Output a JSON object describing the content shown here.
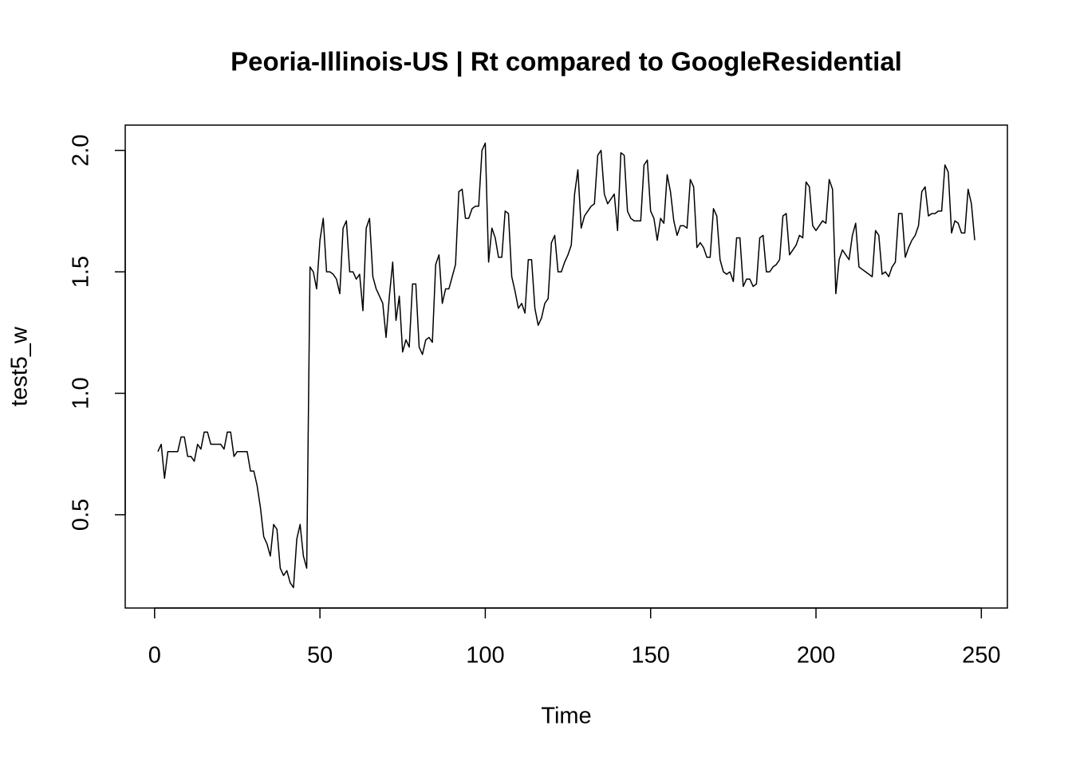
{
  "chart_data": {
    "type": "line",
    "title": "Peoria-Illinois-US | Rt compared to GoogleResidential",
    "xlabel": "Time",
    "ylabel": "test5_w",
    "color": "#000000",
    "x": [
      1,
      2,
      3,
      4,
      5,
      6,
      7,
      8,
      9,
      10,
      11,
      12,
      13,
      14,
      15,
      16,
      17,
      18,
      19,
      20,
      21,
      22,
      23,
      24,
      25,
      26,
      27,
      28,
      29,
      30,
      31,
      32,
      33,
      34,
      35,
      36,
      37,
      38,
      39,
      40,
      41,
      42,
      43,
      44,
      45,
      46,
      47,
      48,
      49,
      50,
      51,
      52,
      53,
      54,
      55,
      56,
      57,
      58,
      59,
      60,
      61,
      62,
      63,
      64,
      65,
      66,
      67,
      68,
      69,
      70,
      71,
      72,
      73,
      74,
      75,
      76,
      77,
      78,
      79,
      80,
      81,
      82,
      83,
      84,
      85,
      86,
      87,
      88,
      89,
      90,
      91,
      92,
      93,
      94,
      95,
      96,
      97,
      98,
      99,
      100,
      101,
      102,
      103,
      104,
      105,
      106,
      107,
      108,
      109,
      110,
      111,
      112,
      113,
      114,
      115,
      116,
      117,
      118,
      119,
      120,
      121,
      122,
      123,
      124,
      125,
      126,
      127,
      128,
      129,
      130,
      131,
      132,
      133,
      134,
      135,
      136,
      137,
      138,
      139,
      140,
      141,
      142,
      143,
      144,
      145,
      146,
      147,
      148,
      149,
      150,
      151,
      152,
      153,
      154,
      155,
      156,
      157,
      158,
      159,
      160,
      161,
      162,
      163,
      164,
      165,
      166,
      167,
      168,
      169,
      170,
      171,
      172,
      173,
      174,
      175,
      176,
      177,
      178,
      179,
      180,
      181,
      182,
      183,
      184,
      185,
      186,
      187,
      188,
      189,
      190,
      191,
      192,
      193,
      194,
      195,
      196,
      197,
      198,
      199,
      200,
      201,
      202,
      203,
      204,
      205,
      206,
      207,
      208,
      209,
      210,
      211,
      212,
      213,
      214,
      215,
      216,
      217,
      218,
      219,
      220,
      221,
      222,
      223,
      224,
      225,
      226,
      227,
      228,
      229,
      230,
      231,
      232,
      233,
      234,
      235,
      236,
      237,
      238,
      239,
      240,
      241,
      242,
      243,
      244,
      245,
      246,
      247,
      248
    ],
    "values": [
      0.76,
      0.79,
      0.65,
      0.76,
      0.76,
      0.76,
      0.76,
      0.82,
      0.82,
      0.74,
      0.74,
      0.72,
      0.79,
      0.77,
      0.84,
      0.84,
      0.79,
      0.79,
      0.79,
      0.79,
      0.77,
      0.84,
      0.84,
      0.74,
      0.76,
      0.76,
      0.76,
      0.76,
      0.68,
      0.68,
      0.62,
      0.53,
      0.41,
      0.38,
      0.33,
      0.46,
      0.44,
      0.28,
      0.25,
      0.27,
      0.22,
      0.2,
      0.4,
      0.46,
      0.33,
      0.28,
      1.52,
      1.5,
      1.43,
      1.63,
      1.72,
      1.5,
      1.5,
      1.49,
      1.47,
      1.41,
      1.68,
      1.71,
      1.5,
      1.5,
      1.47,
      1.49,
      1.34,
      1.68,
      1.72,
      1.48,
      1.43,
      1.4,
      1.37,
      1.23,
      1.4,
      1.54,
      1.3,
      1.4,
      1.17,
      1.22,
      1.19,
      1.45,
      1.45,
      1.19,
      1.16,
      1.22,
      1.23,
      1.21,
      1.53,
      1.57,
      1.37,
      1.43,
      1.43,
      1.48,
      1.53,
      1.83,
      1.84,
      1.72,
      1.72,
      1.76,
      1.77,
      1.77,
      2.0,
      2.03,
      1.54,
      1.68,
      1.64,
      1.56,
      1.56,
      1.75,
      1.74,
      1.48,
      1.42,
      1.35,
      1.37,
      1.33,
      1.55,
      1.55,
      1.35,
      1.28,
      1.31,
      1.37,
      1.39,
      1.62,
      1.65,
      1.5,
      1.5,
      1.54,
      1.57,
      1.61,
      1.82,
      1.92,
      1.68,
      1.73,
      1.75,
      1.77,
      1.78,
      1.98,
      2.0,
      1.82,
      1.78,
      1.8,
      1.82,
      1.67,
      1.99,
      1.98,
      1.75,
      1.72,
      1.71,
      1.71,
      1.71,
      1.94,
      1.96,
      1.75,
      1.72,
      1.63,
      1.72,
      1.7,
      1.9,
      1.83,
      1.71,
      1.65,
      1.69,
      1.69,
      1.68,
      1.88,
      1.85,
      1.6,
      1.62,
      1.6,
      1.56,
      1.56,
      1.76,
      1.73,
      1.55,
      1.5,
      1.49,
      1.5,
      1.46,
      1.64,
      1.64,
      1.44,
      1.47,
      1.47,
      1.44,
      1.45,
      1.64,
      1.65,
      1.5,
      1.5,
      1.52,
      1.53,
      1.55,
      1.73,
      1.74,
      1.57,
      1.59,
      1.61,
      1.65,
      1.64,
      1.87,
      1.85,
      1.69,
      1.67,
      1.69,
      1.71,
      1.7,
      1.88,
      1.84,
      1.41,
      1.55,
      1.59,
      1.57,
      1.55,
      1.65,
      1.7,
      1.52,
      1.51,
      1.5,
      1.49,
      1.48,
      1.67,
      1.65,
      1.49,
      1.5,
      1.48,
      1.52,
      1.54,
      1.74,
      1.74,
      1.56,
      1.6,
      1.63,
      1.65,
      1.69,
      1.83,
      1.85,
      1.73,
      1.74,
      1.74,
      1.75,
      1.75,
      1.94,
      1.91,
      1.66,
      1.71,
      1.7,
      1.66,
      1.66,
      1.84,
      1.78,
      1.63
    ],
    "xlim": [
      -8.88,
      257.88
    ],
    "ylim": [
      0.116,
      2.104
    ],
    "xticks": [
      0,
      50,
      100,
      150,
      200,
      250
    ],
    "yticks": [
      0.5,
      {
        "value": 1,
        "label": "1.0"
      },
      1.5,
      {
        "value": 2,
        "label": "2.0"
      }
    ]
  }
}
